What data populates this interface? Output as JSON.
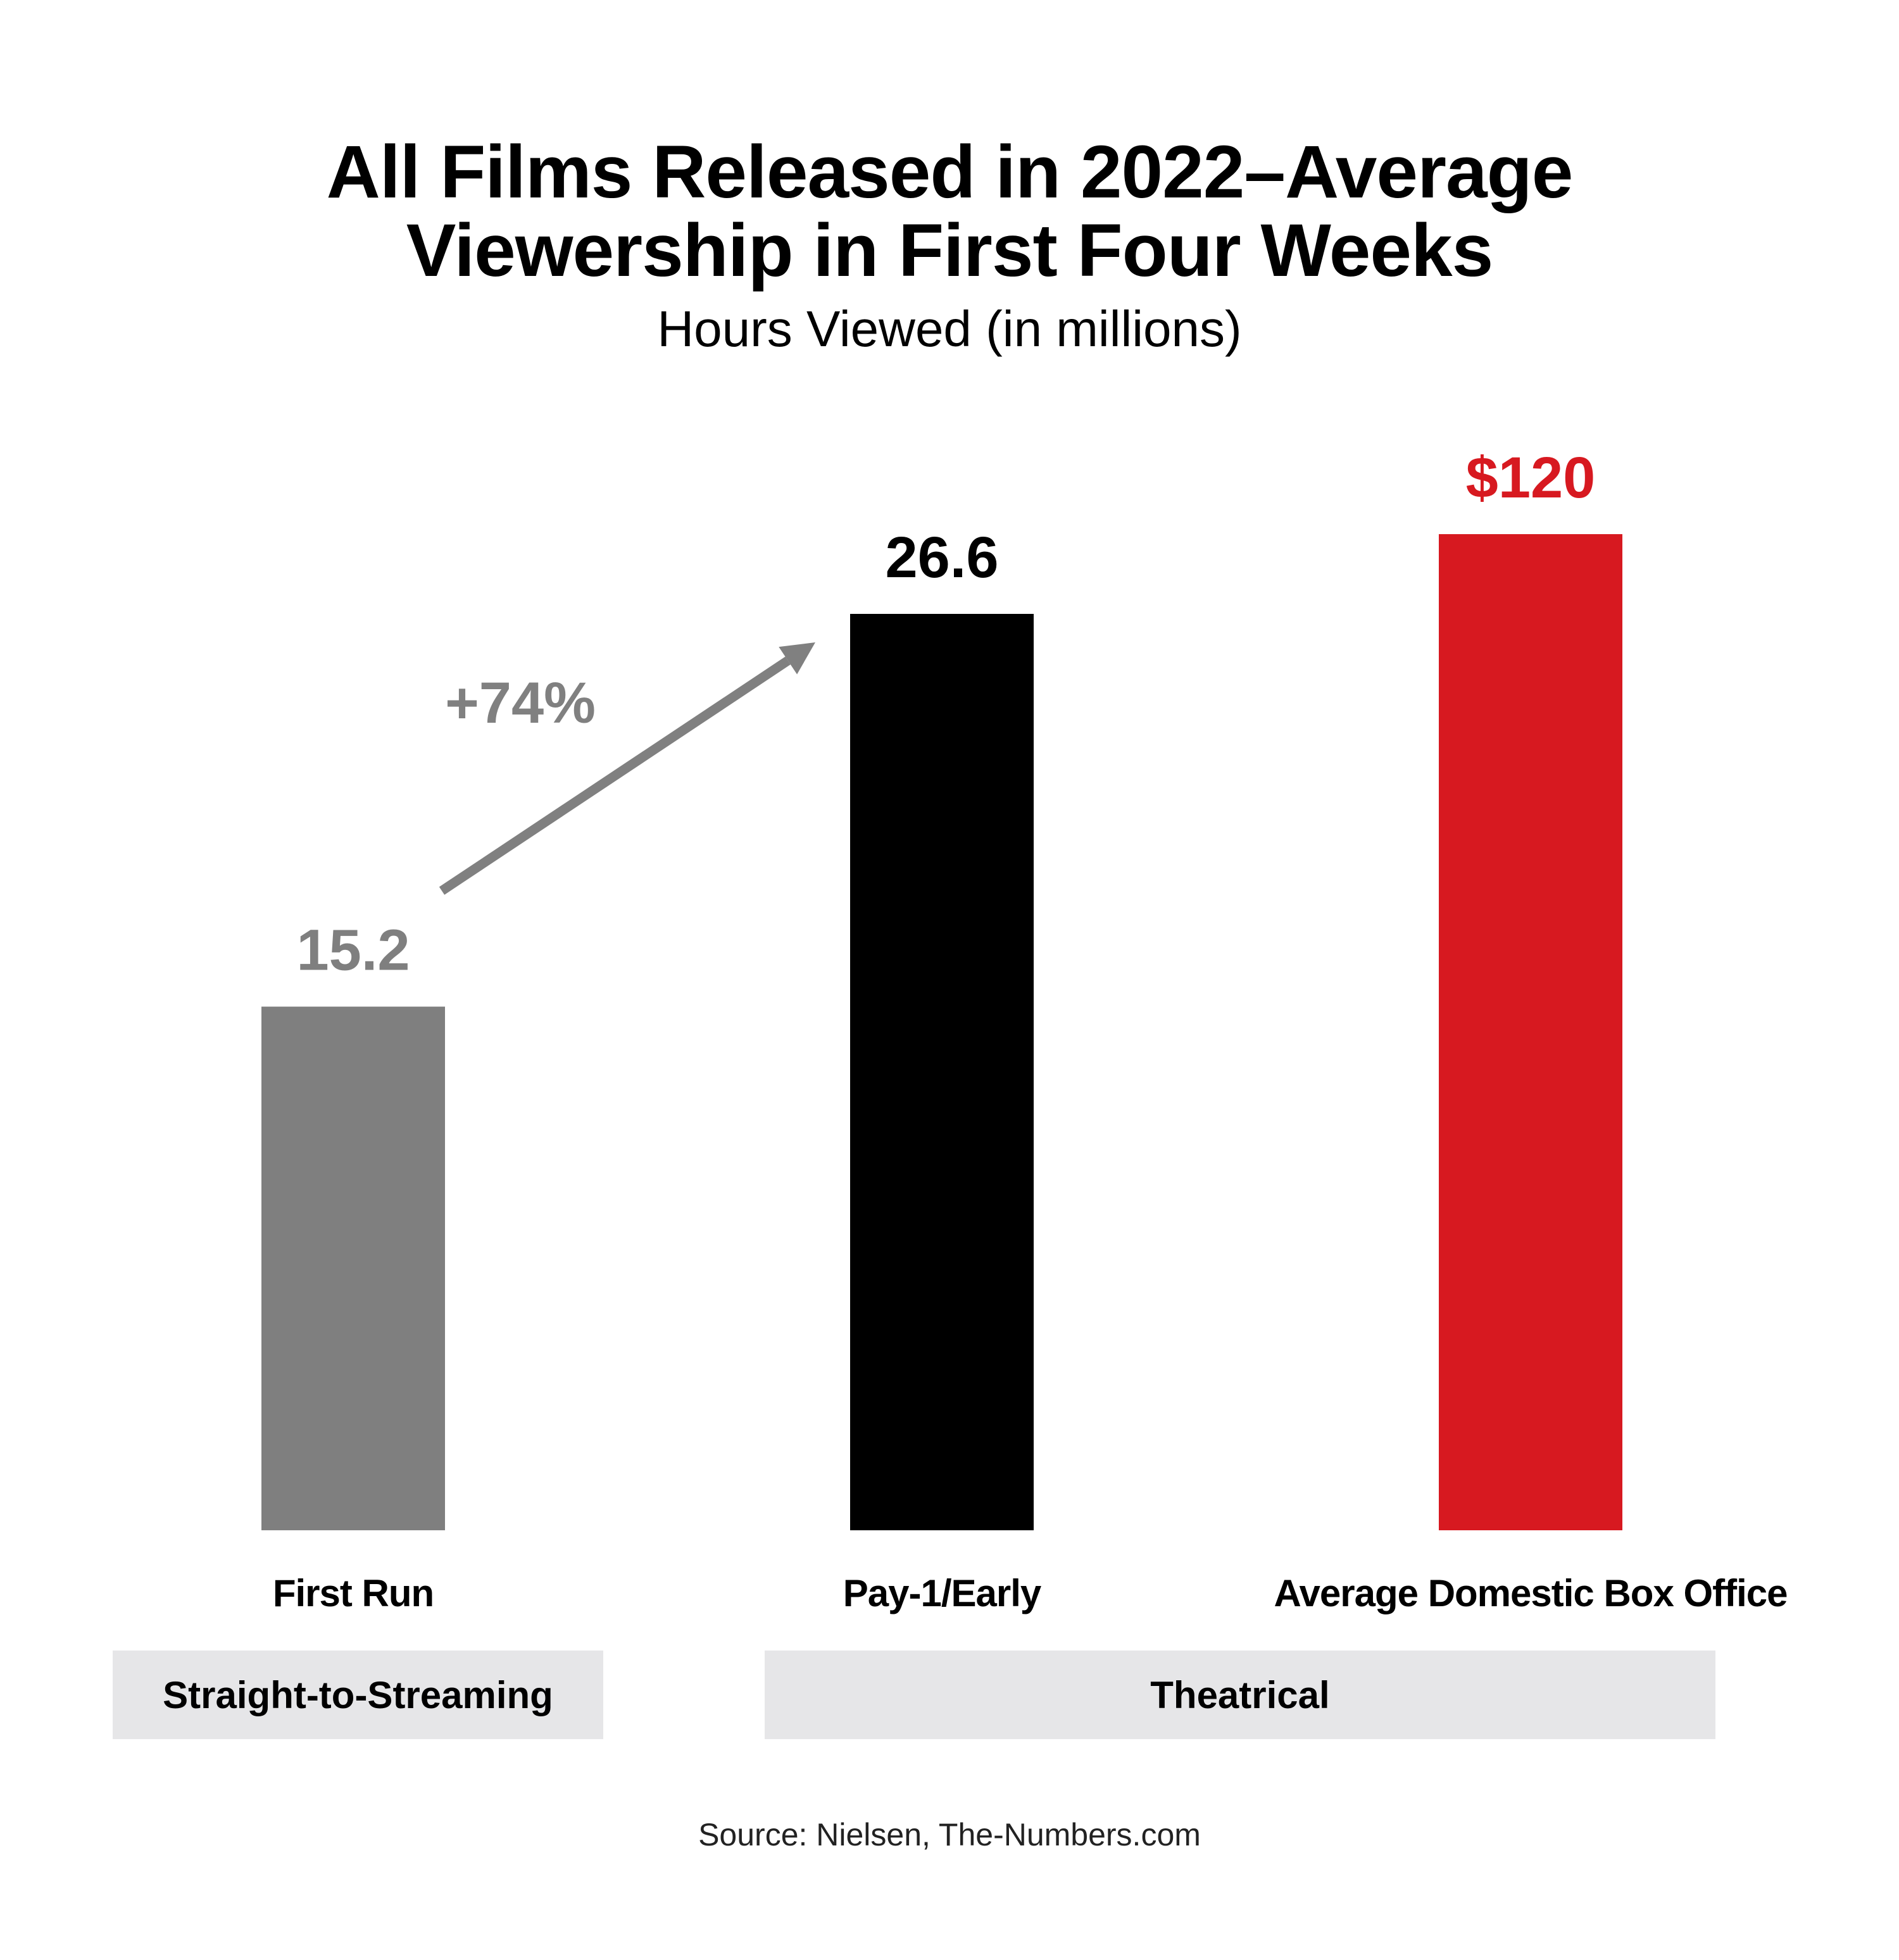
{
  "chart_data": {
    "type": "bar",
    "title_line1": "All Films Released in 2022–Average",
    "title_line2": "Viewership in First Four Weeks",
    "subtitle": "Hours Viewed (in millions)",
    "categories": [
      "First Run",
      "Pay-1/Early",
      "Average Domestic Box Office"
    ],
    "values": [
      15.2,
      26.6,
      120
    ],
    "value_labels": [
      "15.2",
      "26.6",
      "$120"
    ],
    "colors": [
      "#7f7f7f",
      "#000000",
      "#d71920"
    ],
    "label_colors": [
      "#7f7f7f",
      "#000000",
      "#d71920"
    ],
    "annotation": {
      "text": "+74%",
      "color": "#808080"
    },
    "groups": [
      {
        "label": "Straight-to-Streaming"
      },
      {
        "label": "Theatrical"
      }
    ],
    "source": "Source: Nielsen, The-Numbers.com"
  }
}
